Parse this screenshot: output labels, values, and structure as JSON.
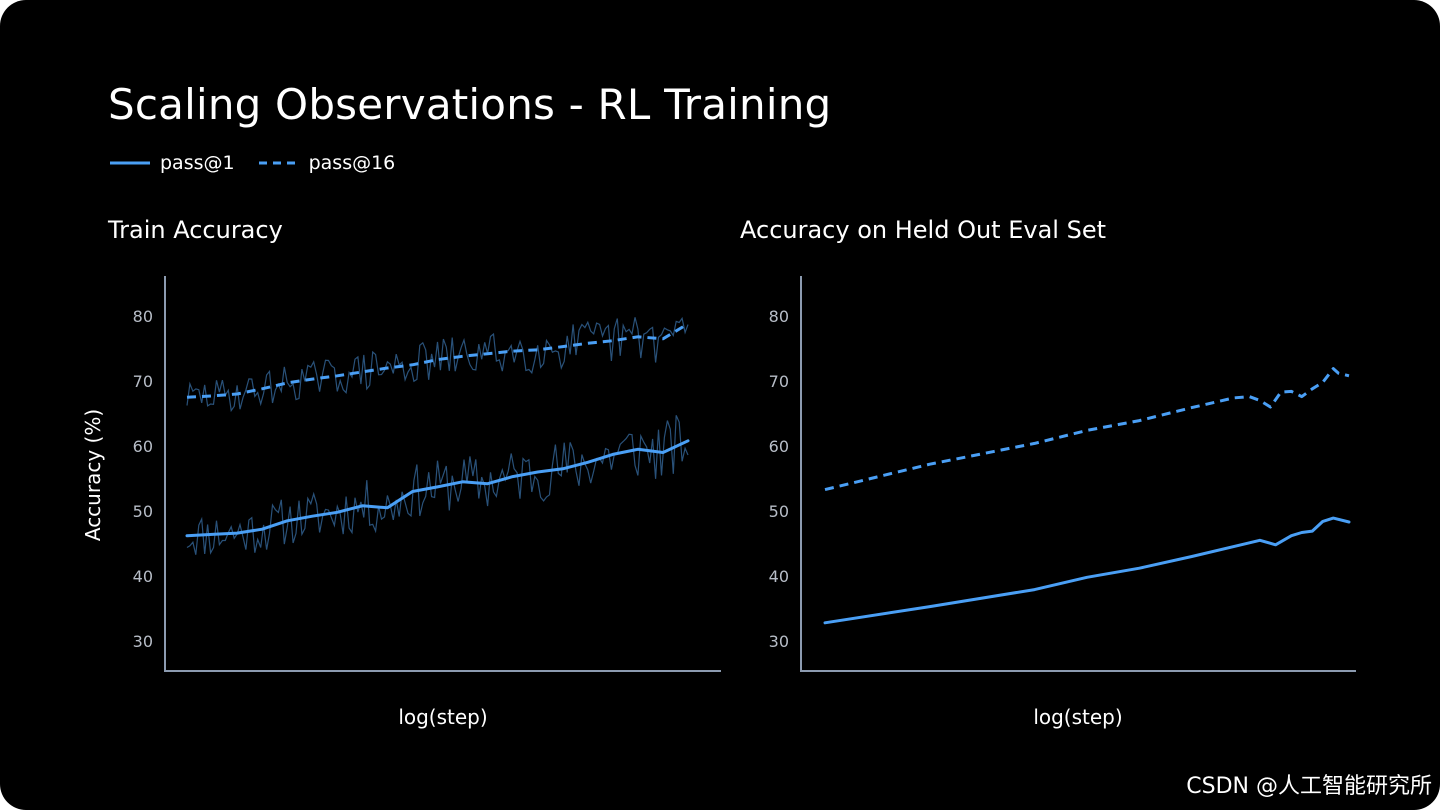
{
  "title": "Scaling Observations - RL Training",
  "legend": [
    {
      "label": "pass@1",
      "style": "solid"
    },
    {
      "label": "pass@16",
      "style": "dashed"
    }
  ],
  "colors": {
    "line": "#4a9ff5",
    "noise": "#2d5a86",
    "axis": "#8c9bb0",
    "tick": "#b7bdc7",
    "background": "#000000"
  },
  "watermark": "CSDN @人工智能研究所",
  "chart_data": [
    {
      "type": "line",
      "title": "Train Accuracy",
      "xlabel": "log(step)",
      "ylabel": "Accuracy (%)",
      "ylim": [
        25.5,
        86
      ],
      "yticks": [
        30,
        40,
        50,
        60,
        70,
        80
      ],
      "grid": false,
      "x_domain": [
        0,
        1
      ],
      "series": [
        {
          "name": "pass@1",
          "style": "solid",
          "x": [
            0,
            0.05,
            0.1,
            0.15,
            0.2,
            0.25,
            0.3,
            0.35,
            0.4,
            0.45,
            0.5,
            0.55,
            0.6,
            0.65,
            0.7,
            0.75,
            0.8,
            0.85,
            0.9,
            0.95,
            1
          ],
          "y": [
            46.2,
            46.4,
            46.6,
            47.2,
            48.5,
            49.2,
            49.8,
            50.8,
            50.5,
            53,
            53.7,
            54.5,
            54.2,
            55.3,
            56,
            56.5,
            57.5,
            58.7,
            59.5,
            59,
            60.8
          ]
        },
        {
          "name": "pass@16",
          "style": "dashed",
          "x": [
            0,
            0.05,
            0.1,
            0.15,
            0.2,
            0.25,
            0.3,
            0.35,
            0.4,
            0.45,
            0.5,
            0.55,
            0.6,
            0.65,
            0.7,
            0.75,
            0.8,
            0.85,
            0.9,
            0.95,
            1
          ],
          "y": [
            67.5,
            67.7,
            68,
            68.8,
            69.7,
            70.3,
            70.8,
            71.4,
            72,
            72.5,
            73.3,
            73.8,
            74.2,
            74.6,
            74.8,
            75.3,
            75.8,
            76.2,
            76.8,
            76.5,
            78.8
          ]
        },
        {
          "name": "pass@1 (raw)",
          "style": "noise",
          "base": "pass@1",
          "amplitude": [
            3.5,
            5
          ],
          "seed": 11
        },
        {
          "name": "pass@16 (raw)",
          "style": "noise",
          "base": "pass@16",
          "amplitude": [
            2.5,
            4
          ],
          "seed": 29
        }
      ]
    },
    {
      "type": "line",
      "title": "Accuracy on Held Out Eval Set",
      "xlabel": "log(step)",
      "ylabel": "",
      "ylim": [
        25.5,
        86
      ],
      "yticks": [
        30,
        40,
        50,
        60,
        70,
        80
      ],
      "grid": false,
      "x_domain": [
        0,
        1
      ],
      "series": [
        {
          "name": "pass@1",
          "style": "solid",
          "x": [
            0,
            0.2,
            0.4,
            0.5,
            0.6,
            0.7,
            0.8,
            0.83,
            0.86,
            0.89,
            0.91,
            0.93,
            0.95,
            0.97,
            1
          ],
          "y": [
            32.8,
            35.3,
            37.9,
            39.8,
            41.2,
            43,
            44.9,
            45.5,
            44.8,
            46.2,
            46.7,
            46.9,
            48.4,
            48.9,
            48.3
          ]
        },
        {
          "name": "pass@16",
          "style": "dashed",
          "x": [
            0,
            0.2,
            0.4,
            0.5,
            0.6,
            0.7,
            0.78,
            0.81,
            0.83,
            0.85,
            0.87,
            0.89,
            0.91,
            0.93,
            0.95,
            0.97,
            0.98,
            1
          ],
          "y": [
            53.3,
            57.2,
            60.4,
            62.4,
            63.9,
            65.9,
            67.4,
            67.6,
            67,
            66,
            68.3,
            68.4,
            67.6,
            68.8,
            69.8,
            71.9,
            71.2,
            70.8
          ]
        }
      ]
    }
  ]
}
